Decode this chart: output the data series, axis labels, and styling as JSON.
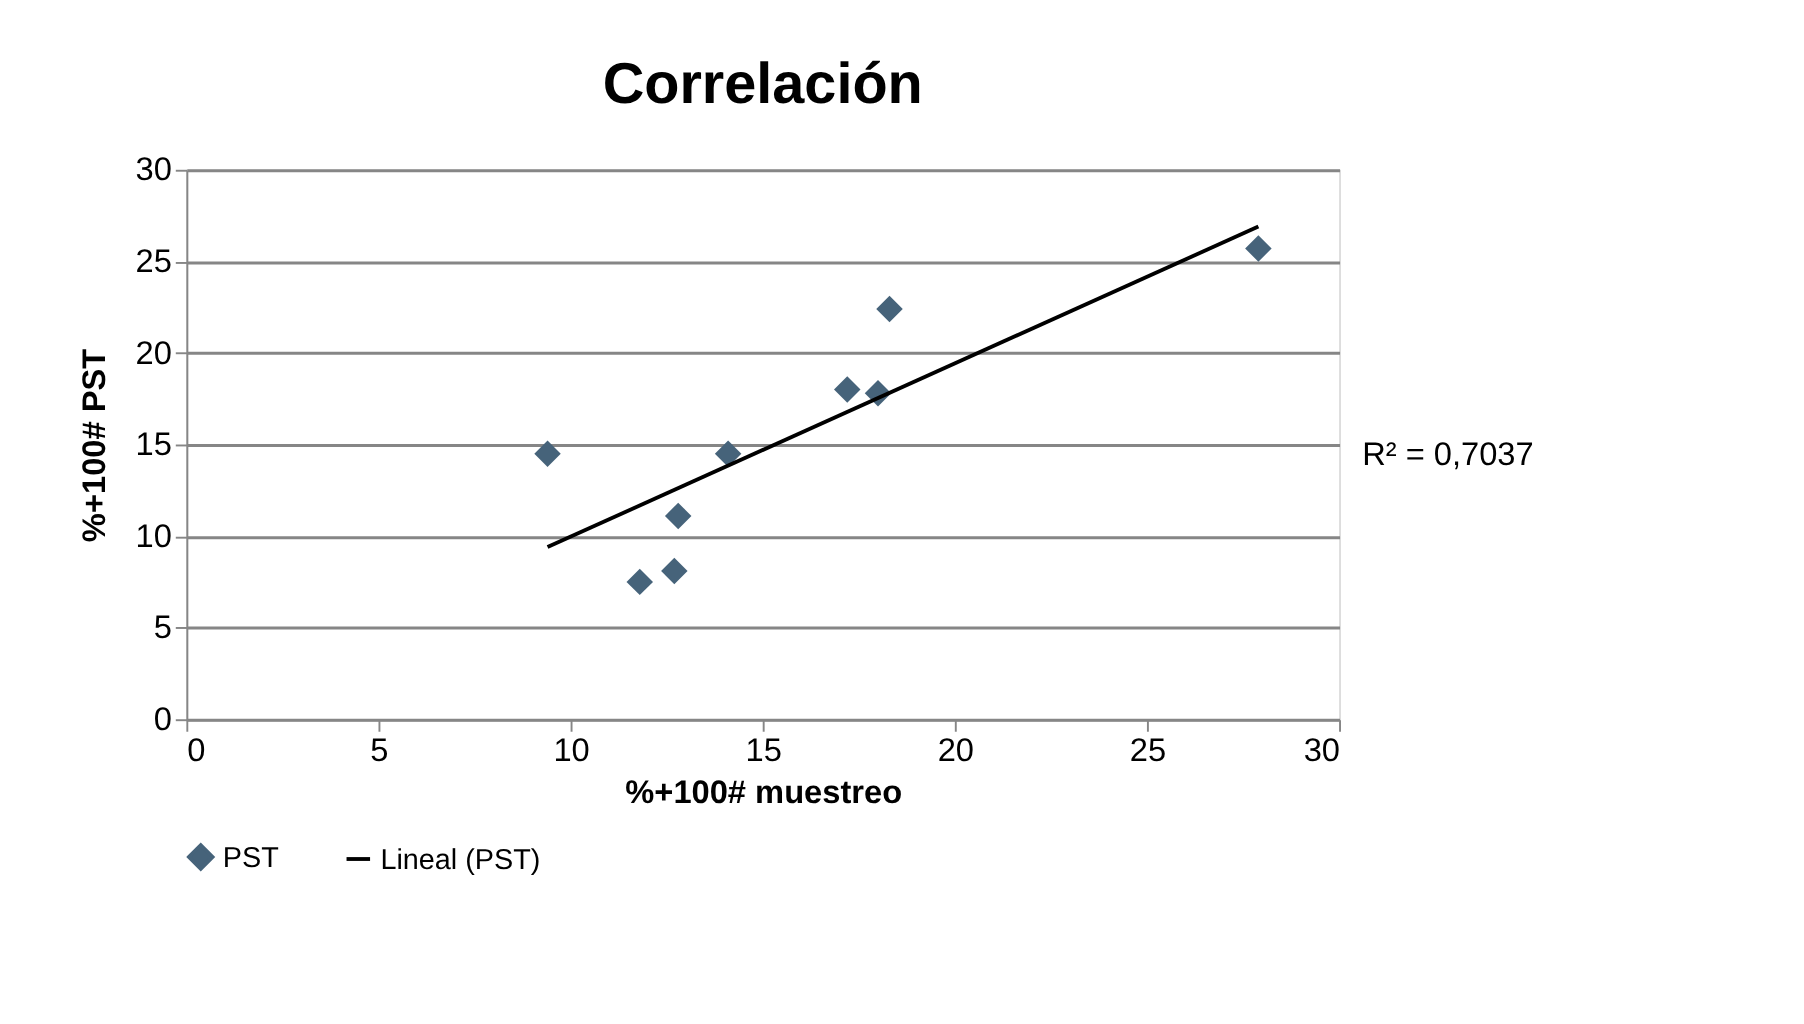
{
  "chart_data": {
    "type": "scatter",
    "title": "Correlación",
    "xlabel": "%+100# muestreo",
    "ylabel": "%+100# PST",
    "xlim": [
      0,
      30
    ],
    "xticks": [
      0,
      5,
      10,
      15,
      20,
      25,
      30
    ],
    "ylim": [
      0,
      30
    ],
    "yticks": [
      0,
      5,
      10,
      15,
      20,
      25,
      30
    ],
    "grid": "y",
    "legend": "bottom",
    "annotations": [
      "R² = 0,7037"
    ],
    "series": [
      {
        "name": "PST",
        "color": "#46637a",
        "marker": "diamond",
        "x": [
          9.4,
          11.8,
          12.7,
          12.8,
          14.1,
          17.2,
          18.0,
          18.3,
          27.9
        ],
        "values": [
          14.5,
          7.5,
          8.1,
          11.1,
          14.5,
          18.0,
          17.8,
          22.4,
          25.7
        ]
      },
      {
        "name": "Lineal (PST)",
        "type": "line",
        "color": "#000000",
        "x": [
          9.4,
          27.9
        ],
        "values": [
          9.4,
          26.9
        ]
      }
    ]
  }
}
